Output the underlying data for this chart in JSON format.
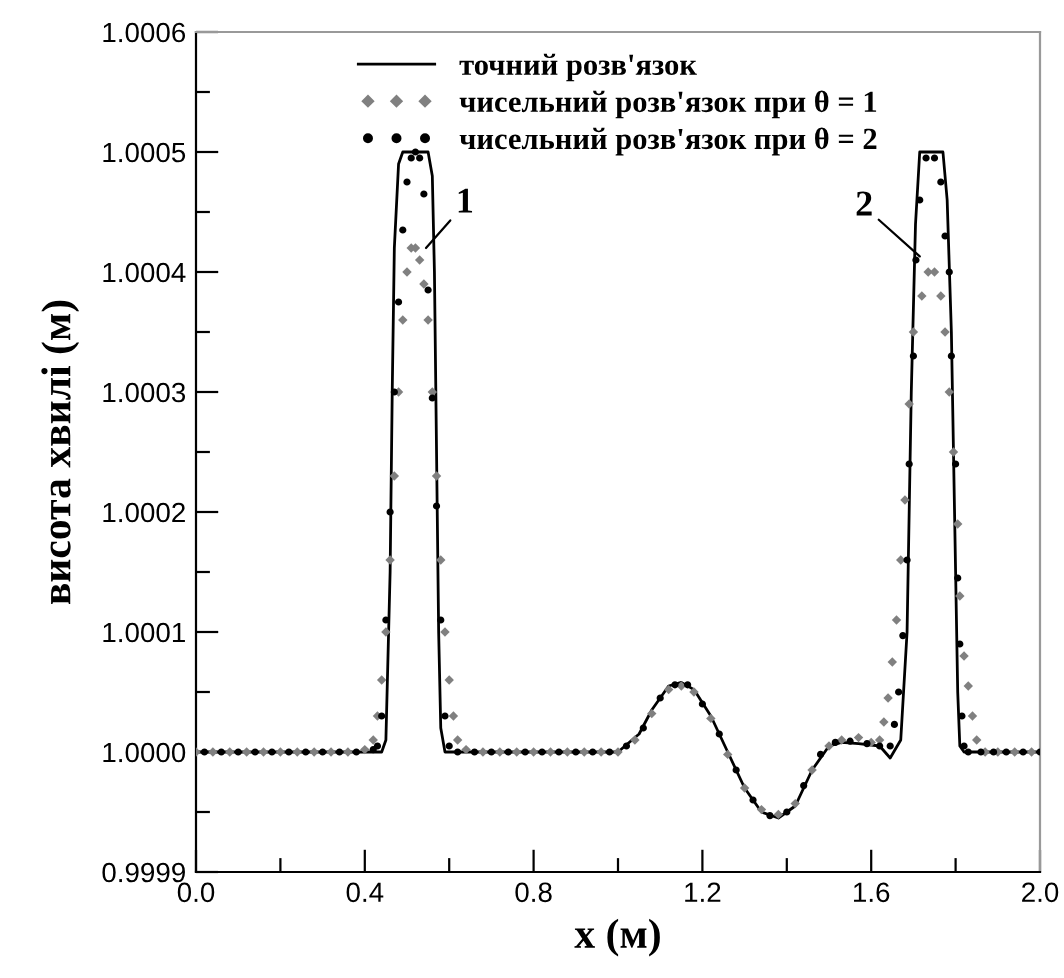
{
  "chart_data": {
    "type": "line",
    "xlabel": "x (м)",
    "ylabel": "висота хвилі (м)",
    "xlim": [
      0.0,
      2.0
    ],
    "xticks": [
      {
        "value": 0.0,
        "label": "0.0"
      },
      {
        "value": 0.2,
        "label": null
      },
      {
        "value": 0.4,
        "label": "0.4"
      },
      {
        "value": 0.6,
        "label": null
      },
      {
        "value": 0.8,
        "label": "0.8"
      },
      {
        "value": 1.0,
        "label": null
      },
      {
        "value": 1.2,
        "label": "1.2"
      },
      {
        "value": 1.4,
        "label": null
      },
      {
        "value": 1.6,
        "label": "1.6"
      },
      {
        "value": 1.8,
        "label": null
      },
      {
        "value": 2.0,
        "label": "2.0"
      }
    ],
    "ylim": [
      0.9999,
      1.0006
    ],
    "yticks": [
      {
        "value": 0.9999,
        "label": "0.9999"
      },
      {
        "value": 0.99995,
        "label": null
      },
      {
        "value": 1.0,
        "label": "1.0000"
      },
      {
        "value": 1.00005,
        "label": null
      },
      {
        "value": 1.0001,
        "label": "1.0001"
      },
      {
        "value": 1.00015,
        "label": null
      },
      {
        "value": 1.0002,
        "label": "1.0002"
      },
      {
        "value": 1.00025,
        "label": null
      },
      {
        "value": 1.0003,
        "label": "1.0003"
      },
      {
        "value": 1.00035,
        "label": null
      },
      {
        "value": 1.0004,
        "label": "1.0004"
      },
      {
        "value": 1.00045,
        "label": null
      },
      {
        "value": 1.0005,
        "label": "1.0005"
      },
      {
        "value": 1.00055,
        "label": null
      },
      {
        "value": 1.0006,
        "label": "1.0006"
      }
    ],
    "grid": false,
    "legend": "top",
    "annotations": [
      {
        "text": "1",
        "x": 0.545,
        "y": 1.00042
      },
      {
        "text": "2",
        "x": 1.715,
        "y": 1.000413
      }
    ],
    "series": [
      {
        "name": "точний розв'язок",
        "color": "#000000",
        "marker": "none",
        "line_style": "solid",
        "x": [
          0,
          0.44,
          0.45,
          0.46,
          0.465,
          0.47,
          0.48,
          0.49,
          0.55,
          0.56,
          0.565,
          0.57,
          0.575,
          0.58,
          0.59,
          1.0,
          1.05,
          1.08,
          1.12,
          1.15,
          1.18,
          1.22,
          1.26,
          1.3,
          1.34,
          1.38,
          1.42,
          1.46,
          1.5,
          1.53,
          1.57,
          1.62,
          1.645,
          1.67,
          1.685,
          1.695,
          1.705,
          1.715,
          1.77,
          1.78,
          1.79,
          1.8,
          1.805,
          1.81,
          1.82,
          2.0
        ],
        "values": [
          1,
          1,
          1.00001,
          1.00015,
          1.0003,
          1.00042,
          1.00049,
          1.0005,
          1.0005,
          1.00048,
          1.0004,
          1.00025,
          1.0001,
          1.00002,
          1,
          1,
          1.000015,
          1.000035,
          1.000055,
          1.000058,
          1.000052,
          1.00003,
          1,
          0.99997,
          0.99995,
          0.999945,
          0.999955,
          0.999985,
          1.000005,
          1.000008,
          1.000007,
          1.000005,
          0.999995,
          1.00001,
          1.0001,
          1.0003,
          1.00044,
          1.0005,
          1.0005,
          1.00046,
          1.00035,
          1.00015,
          1.00005,
          1.000005,
          1,
          1
        ]
      },
      {
        "name": "чисельний розв'язок при θ = 1",
        "type": "scatter",
        "color": "#808080",
        "marker": "diamond",
        "x": [
          0,
          0.04,
          0.08,
          0.12,
          0.16,
          0.2,
          0.24,
          0.28,
          0.32,
          0.36,
          0.4,
          0.42,
          0.43,
          0.44,
          0.45,
          0.46,
          0.47,
          0.48,
          0.49,
          0.5,
          0.51,
          0.52,
          0.53,
          0.54,
          0.55,
          0.56,
          0.57,
          0.58,
          0.59,
          0.6,
          0.61,
          0.62,
          0.64,
          0.68,
          0.72,
          0.76,
          0.8,
          0.84,
          0.88,
          0.92,
          0.96,
          1.0,
          1.04,
          1.08,
          1.12,
          1.15,
          1.18,
          1.22,
          1.26,
          1.3,
          1.34,
          1.38,
          1.42,
          1.46,
          1.5,
          1.53,
          1.57,
          1.6,
          1.62,
          1.63,
          1.64,
          1.65,
          1.66,
          1.67,
          1.68,
          1.69,
          1.7,
          1.72,
          1.735,
          1.75,
          1.765,
          1.775,
          1.785,
          1.795,
          1.805,
          1.81,
          1.82,
          1.83,
          1.84,
          1.85,
          1.87,
          1.9,
          1.94,
          1.98
        ],
        "values": [
          1,
          1,
          1,
          1,
          1,
          1,
          1,
          1,
          1,
          1,
          1.000002,
          1.00001,
          1.00003,
          1.00006,
          1.0001,
          1.00016,
          1.00023,
          1.0003,
          1.00036,
          1.0004,
          1.00042,
          1.00042,
          1.00041,
          1.00039,
          1.00036,
          1.0003,
          1.00023,
          1.00016,
          1.0001,
          1.00006,
          1.00003,
          1.00001,
          1.000002,
          1,
          1,
          1,
          1,
          1,
          1,
          1,
          1,
          1,
          1.00001,
          1.000032,
          1.000052,
          1.000055,
          1.00005,
          1.000028,
          0.999998,
          0.99997,
          0.999952,
          0.999948,
          0.999957,
          0.999985,
          1.000005,
          1.00001,
          1.000012,
          1.000008,
          1.00001,
          1.000025,
          1.000045,
          1.000075,
          1.00011,
          1.00016,
          1.00021,
          1.00029,
          1.00035,
          1.00038,
          1.0004,
          1.0004,
          1.00038,
          1.00035,
          1.0003,
          1.00025,
          1.00019,
          1.00013,
          1.00008,
          1.000055,
          1.00003,
          1.00001,
          1,
          1,
          1,
          1
        ]
      },
      {
        "name": "чисельний розв'язок при θ = 2",
        "type": "scatter",
        "color": "#000000",
        "marker": "circle",
        "x": [
          0.02,
          0.06,
          0.1,
          0.14,
          0.18,
          0.22,
          0.26,
          0.3,
          0.34,
          0.38,
          0.42,
          0.43,
          0.44,
          0.45,
          0.46,
          0.47,
          0.48,
          0.49,
          0.5,
          0.51,
          0.52,
          0.53,
          0.54,
          0.55,
          0.56,
          0.57,
          0.58,
          0.59,
          0.6,
          0.62,
          0.66,
          0.7,
          0.74,
          0.78,
          0.82,
          0.86,
          0.9,
          0.94,
          0.98,
          1.02,
          1.06,
          1.1,
          1.135,
          1.165,
          1.2,
          1.24,
          1.28,
          1.32,
          1.36,
          1.4,
          1.44,
          1.48,
          1.515,
          1.55,
          1.59,
          1.62,
          1.645,
          1.655,
          1.665,
          1.675,
          1.685,
          1.69,
          1.7,
          1.706,
          1.715,
          1.73,
          1.75,
          1.765,
          1.775,
          1.785,
          1.79,
          1.8,
          1.805,
          1.81,
          1.815,
          1.82,
          1.83,
          1.86,
          1.89,
          1.92,
          1.96,
          2.0
        ],
        "values": [
          1,
          1,
          1,
          1,
          1,
          1,
          1,
          1,
          1,
          1,
          1.000002,
          1.000005,
          1.00003,
          1.00011,
          1.0002,
          1.0003,
          1.000375,
          1.000435,
          1.000475,
          1.000495,
          1.0005,
          1.000495,
          1.000465,
          1.000385,
          1.000295,
          1.000205,
          1.00011,
          1.00003,
          1.000005,
          1,
          1,
          1,
          1,
          1,
          1,
          1,
          1,
          1,
          1,
          1.000005,
          1.00002,
          1.000045,
          1.000056,
          1.000056,
          1.00004,
          1.000015,
          0.999985,
          0.99996,
          0.999947,
          0.99995,
          0.999972,
          0.999998,
          1.000008,
          1.000009,
          1.000007,
          1.000005,
          1.000005,
          1.000023,
          1.00005,
          1.000097,
          1.00016,
          1.00024,
          1.00033,
          1.00041,
          1.00046,
          1.000495,
          1.000495,
          1.000475,
          1.00043,
          1.0004,
          1.00033,
          1.00024,
          1.000145,
          1.00009,
          1.00003,
          1.000005,
          1,
          1,
          1,
          1,
          1,
          1
        ]
      }
    ]
  }
}
